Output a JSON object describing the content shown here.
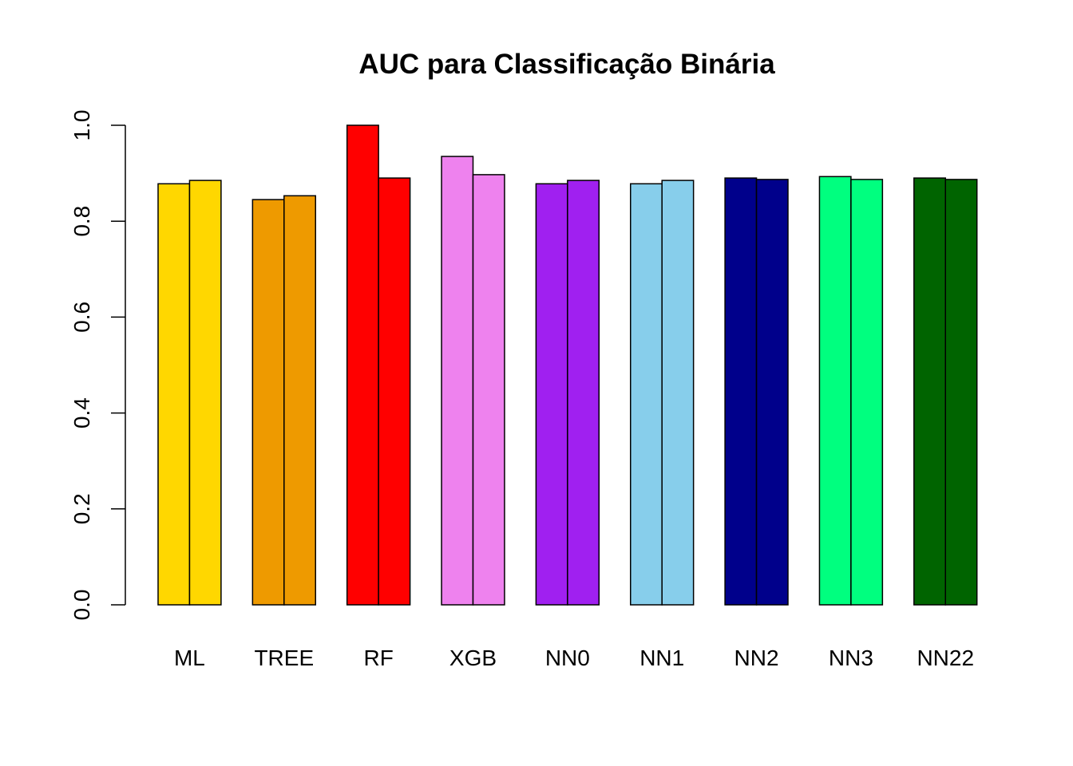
{
  "chart_data": {
    "type": "bar",
    "title": "AUC para Classificação Binária",
    "xlabel": "",
    "ylabel": "",
    "ylim": [
      0,
      1
    ],
    "yticks": [
      "0.0",
      "0.2",
      "0.4",
      "0.6",
      "0.8",
      "1.0"
    ],
    "grid": false,
    "categories": [
      "ML",
      "TREE",
      "RF",
      "XGB",
      "NN0",
      "NN1",
      "NN2",
      "NN3",
      "NN22"
    ],
    "colors": [
      "#FFD700",
      "#EE9A00",
      "#FF0000",
      "#EE82EE",
      "#A020F0",
      "#87CEEB",
      "#00008B",
      "#00FF7F",
      "#006400"
    ],
    "series": [
      {
        "values": [
          0.878,
          0.845,
          1.0,
          0.935,
          0.878,
          0.878,
          0.89,
          0.893,
          0.89
        ]
      },
      {
        "values": [
          0.885,
          0.853,
          0.89,
          0.897,
          0.885,
          0.885,
          0.887,
          0.887,
          0.887
        ]
      }
    ]
  }
}
